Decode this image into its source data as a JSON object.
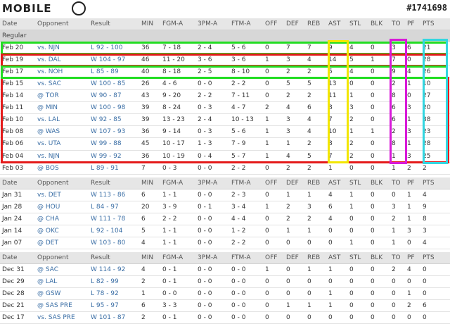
{
  "header": {
    "logo_text": "MOBILE",
    "post_id": "#1741698"
  },
  "columns": [
    "Date",
    "Opponent",
    "Result",
    "MIN",
    "FGM-A",
    "3PM-A",
    "FTM-A",
    "OFF",
    "DEF",
    "REB",
    "AST",
    "STL",
    "BLK",
    "TO",
    "PF",
    "PTS"
  ],
  "section_label": "Regular",
  "groups": [
    {
      "rows": [
        [
          "Feb 20",
          "vs. NJN",
          "L 92 - 100",
          "36",
          "7 - 18",
          "2 - 4",
          "5 - 6",
          "0",
          "7",
          "7",
          "9",
          "4",
          "0",
          "3",
          "6",
          "21"
        ],
        [
          "Feb 19",
          "vs. DAL",
          "W 104 - 97",
          "46",
          "11 - 20",
          "3 - 6",
          "3 - 6",
          "1",
          "3",
          "4",
          "14",
          "5",
          "1",
          "7",
          "0",
          "28"
        ],
        [
          "Feb 17",
          "vs. NOH",
          "L 85 - 89",
          "40",
          "8 - 18",
          "2 - 5",
          "8 - 10",
          "0",
          "2",
          "2",
          "5",
          "4",
          "0",
          "9",
          "4",
          "26"
        ],
        [
          "Feb 15",
          "vs. SAC",
          "W 100 - 85",
          "26",
          "4 - 6",
          "0 - 0",
          "2 - 2",
          "0",
          "5",
          "5",
          "13",
          "0",
          "0",
          "2",
          "1",
          "10"
        ],
        [
          "Feb 14",
          "@ TOR",
          "W 90 - 87",
          "43",
          "9 - 20",
          "2 - 2",
          "7 - 11",
          "0",
          "2",
          "2",
          "11",
          "1",
          "0",
          "8",
          "0",
          "27"
        ],
        [
          "Feb 11",
          "@ MIN",
          "W 100 - 98",
          "39",
          "8 - 24",
          "0 - 3",
          "4 - 7",
          "2",
          "4",
          "6",
          "8",
          "3",
          "0",
          "6",
          "3",
          "20"
        ],
        [
          "Feb 10",
          "vs. LAL",
          "W 92 - 85",
          "39",
          "13 - 23",
          "2 - 4",
          "10 - 13",
          "1",
          "3",
          "4",
          "7",
          "2",
          "0",
          "6",
          "1",
          "38"
        ],
        [
          "Feb 08",
          "@ WAS",
          "W 107 - 93",
          "36",
          "9 - 14",
          "0 - 3",
          "5 - 6",
          "1",
          "3",
          "4",
          "10",
          "1",
          "1",
          "2",
          "3",
          "23"
        ],
        [
          "Feb 06",
          "vs. UTA",
          "W 99 - 88",
          "45",
          "10 - 17",
          "1 - 3",
          "7 - 9",
          "1",
          "1",
          "2",
          "8",
          "2",
          "0",
          "8",
          "1",
          "28"
        ],
        [
          "Feb 04",
          "vs. NJN",
          "W 99 - 92",
          "36",
          "10 - 19",
          "0 - 4",
          "5 - 7",
          "1",
          "4",
          "5",
          "7",
          "2",
          "0",
          "1",
          "3",
          "25"
        ],
        [
          "Feb 03",
          "@ BOS",
          "L 89 - 91",
          "7",
          "0 - 3",
          "0 - 0",
          "2 - 2",
          "0",
          "2",
          "2",
          "1",
          "0",
          "0",
          "1",
          "2",
          "2"
        ]
      ]
    },
    {
      "rows": [
        [
          "Jan 31",
          "vs. DET",
          "W 113 - 86",
          "6",
          "1 - 1",
          "0 - 0",
          "2 - 3",
          "0",
          "1",
          "1",
          "4",
          "1",
          "0",
          "0",
          "1",
          "4"
        ],
        [
          "Jan 28",
          "@ HOU",
          "L 84 - 97",
          "20",
          "3 - 9",
          "0 - 1",
          "3 - 4",
          "1",
          "2",
          "3",
          "6",
          "1",
          "0",
          "3",
          "1",
          "9"
        ],
        [
          "Jan 24",
          "@ CHA",
          "W 111 - 78",
          "6",
          "2 - 2",
          "0 - 0",
          "4 - 4",
          "0",
          "2",
          "2",
          "4",
          "0",
          "0",
          "2",
          "1",
          "8"
        ],
        [
          "Jan 14",
          "@ OKC",
          "L 92 - 104",
          "5",
          "1 - 1",
          "0 - 0",
          "1 - 2",
          "0",
          "1",
          "1",
          "0",
          "0",
          "0",
          "1",
          "3",
          "3"
        ],
        [
          "Jan 07",
          "@ DET",
          "W 103 - 80",
          "4",
          "1 - 1",
          "0 - 0",
          "2 - 2",
          "0",
          "0",
          "0",
          "0",
          "1",
          "0",
          "1",
          "0",
          "4"
        ]
      ]
    },
    {
      "rows": [
        [
          "Dec 31",
          "@ SAC",
          "W 114 - 92",
          "4",
          "0 - 1",
          "0 - 0",
          "0 - 0",
          "1",
          "0",
          "1",
          "1",
          "0",
          "0",
          "2",
          "4",
          "0"
        ],
        [
          "Dec 29",
          "@ LAL",
          "L 82 - 99",
          "2",
          "0 - 1",
          "0 - 0",
          "0 - 0",
          "0",
          "0",
          "0",
          "0",
          "0",
          "0",
          "0",
          "0",
          "0"
        ],
        [
          "Dec 28",
          "@ GSW",
          "L 78 - 92",
          "1",
          "0 - 0",
          "0 - 0",
          "0 - 0",
          "0",
          "0",
          "0",
          "1",
          "0",
          "0",
          "0",
          "1",
          "0"
        ],
        [
          "Dec 21",
          "@ SAS PRE",
          "L 95 - 97",
          "6",
          "3 - 3",
          "0 - 0",
          "0 - 0",
          "0",
          "1",
          "1",
          "1",
          "0",
          "0",
          "0",
          "2",
          "6"
        ],
        [
          "Dec 17",
          "vs. SAS PRE",
          "W 101 - 87",
          "2",
          "0 - 1",
          "0 - 0",
          "0 - 0",
          "0",
          "0",
          "0",
          "0",
          "0",
          "0",
          "0",
          "0",
          "0"
        ]
      ]
    }
  ],
  "highlight_colors": {
    "green": "#22dd22",
    "red": "#e41a1a",
    "yellow": "#f2e600",
    "magenta": "#d81ad8",
    "cyan": "#33d6e0"
  }
}
